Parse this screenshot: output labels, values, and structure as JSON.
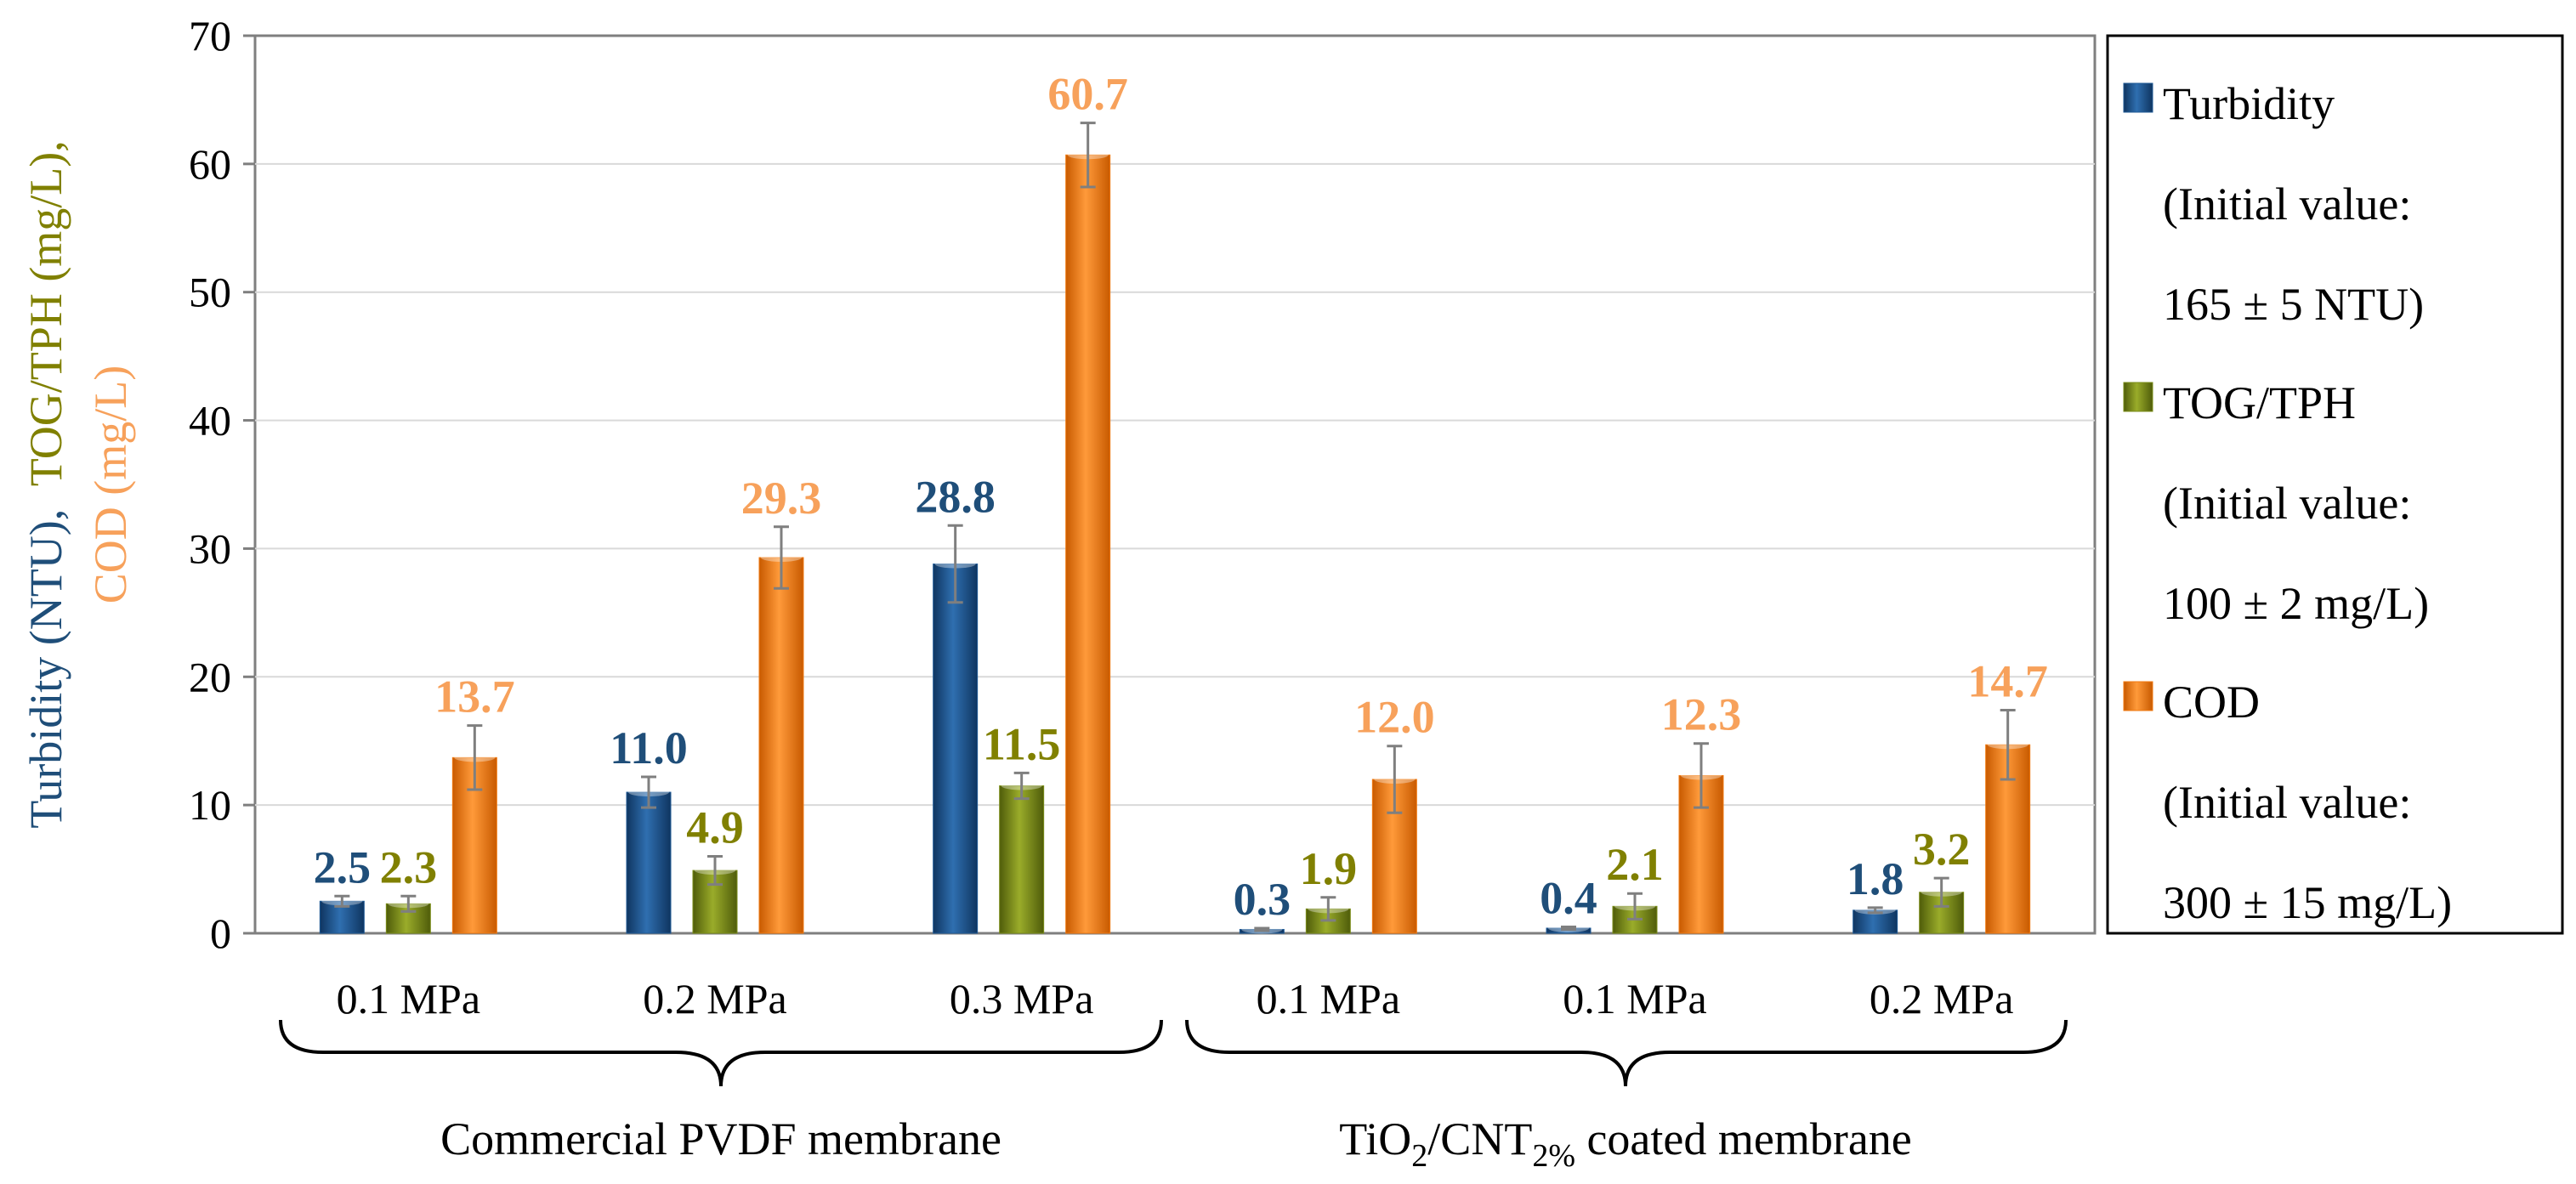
{
  "chart_data": {
    "type": "bar",
    "title": "",
    "xlabel": "",
    "ylabel": {
      "turbidity": "Turbidity (NTU),",
      "tog": "TOG/TPH (mg/L),",
      "cod": "COD (mg/L)"
    },
    "ylim": [
      0,
      70
    ],
    "yticks": [
      0,
      10,
      20,
      30,
      40,
      50,
      60,
      70
    ],
    "grid": true,
    "categories": [
      "0.1 MPa",
      "0.2 MPa",
      "0.3 MPa",
      "0.1 MPa",
      "0.1 MPa",
      "0.2 MPa"
    ],
    "groups": [
      {
        "label": "Commercial PVDF membrane",
        "members": [
          0,
          1,
          2
        ]
      },
      {
        "label_parts": [
          "TiO",
          "2",
          "/CNT",
          "2%",
          " coated membrane"
        ],
        "members": [
          3,
          4,
          5
        ]
      }
    ],
    "series": [
      {
        "name": "Turbidity",
        "legend": [
          "Turbidity",
          "(Initial value:",
          "165 ± 5 NTU)"
        ],
        "color": "#1f5a96",
        "label_color": "#1f4e79",
        "values": [
          2.5,
          11.0,
          28.8,
          0.3,
          0.4,
          1.8
        ],
        "labels": [
          "2.5",
          "11.0",
          "28.8",
          "0.3",
          "0.4",
          "1.8"
        ],
        "errors": [
          0.4,
          1.2,
          3.0,
          0.1,
          0.1,
          0.2
        ]
      },
      {
        "name": "TOG/TPH",
        "legend": [
          "TOG/TPH",
          "(Initial value:",
          "100 ± 2 mg/L)"
        ],
        "color": "#7a8c18",
        "label_color": "#808000",
        "values": [
          2.3,
          4.9,
          11.5,
          1.9,
          2.1,
          3.2
        ],
        "labels": [
          "2.3",
          "4.9",
          "11.5",
          "1.9",
          "2.1",
          "3.2"
        ],
        "errors": [
          0.6,
          1.1,
          1.0,
          0.9,
          1.0,
          1.1
        ]
      },
      {
        "name": "COD",
        "legend": [
          "COD",
          "(Initial value:",
          "300 ± 15 mg/L)"
        ],
        "color": "#f07a10",
        "label_color": "#f7a15b",
        "values": [
          13.7,
          29.3,
          60.7,
          12.0,
          12.3,
          14.7
        ],
        "labels": [
          "13.7",
          "29.3",
          "60.7",
          "12.0",
          "12.3",
          "14.7"
        ],
        "errors": [
          2.5,
          2.4,
          2.5,
          2.6,
          2.5,
          2.7
        ]
      }
    ]
  }
}
